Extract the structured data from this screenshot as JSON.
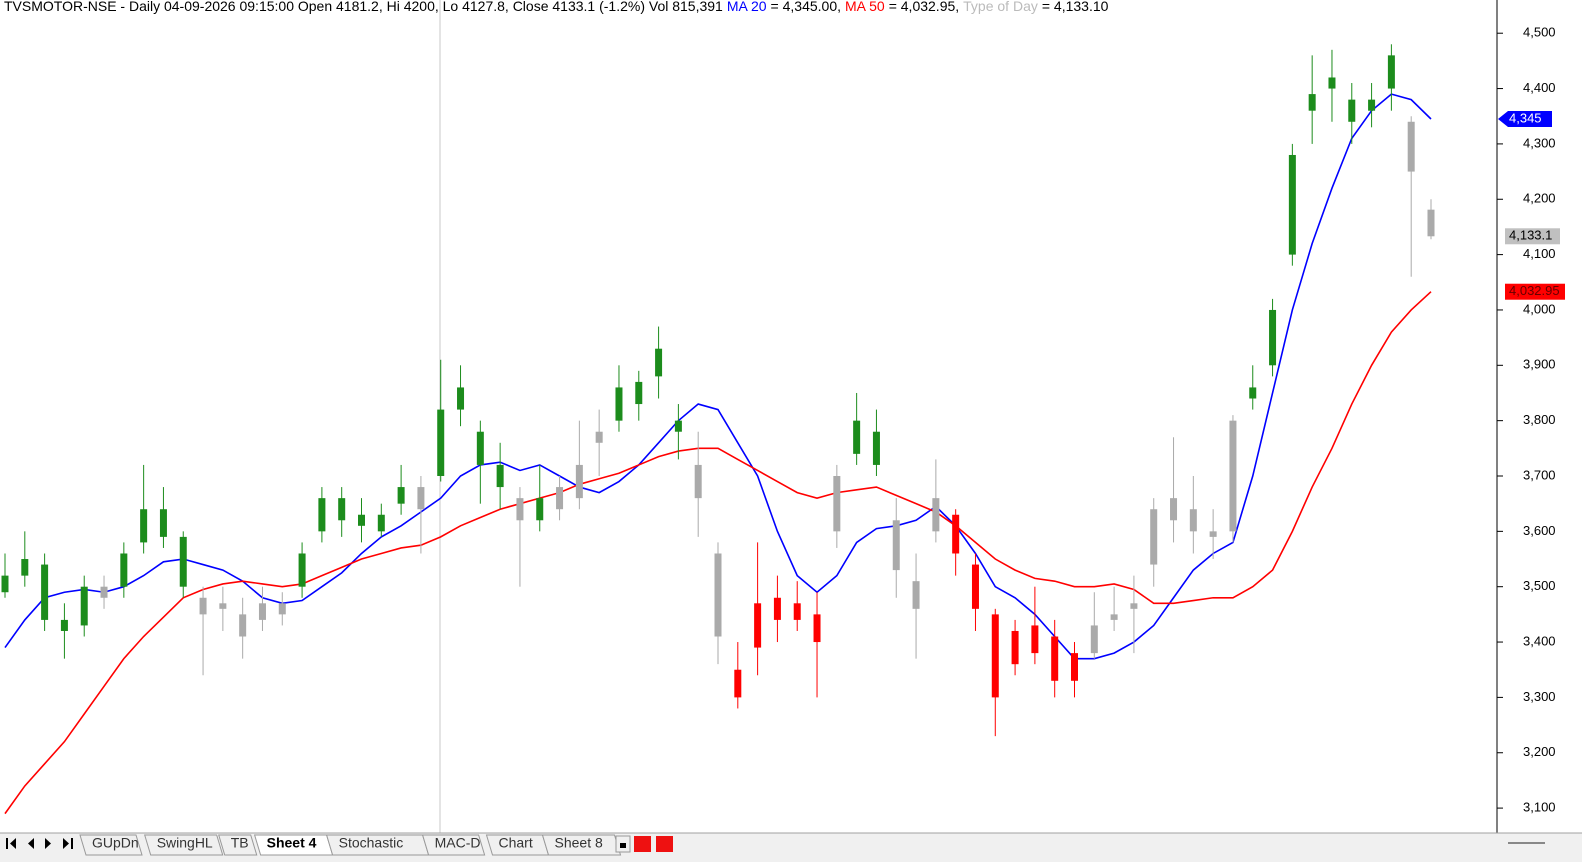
{
  "chart_data": {
    "type": "candlestick",
    "title": "TVSMOTOR-NSE - Daily 04-09-2026 09:15:00 Open 4181.2, Hi 4200, Lo 4127.8, Close 4133.1 (-1.2%) Vol 815,391",
    "ylim": [
      3055,
      4560
    ],
    "yticks": [
      {
        "value": 3100,
        "label": "3,100"
      },
      {
        "value": 3200,
        "label": "3,200"
      },
      {
        "value": 3300,
        "label": "3,300"
      },
      {
        "value": 3400,
        "label": "3,400"
      },
      {
        "value": 3500,
        "label": "3,500"
      },
      {
        "value": 3600,
        "label": "3,600"
      },
      {
        "value": 3700,
        "label": "3,700"
      },
      {
        "value": 3800,
        "label": "3,800"
      },
      {
        "value": 3900,
        "label": "3,900"
      },
      {
        "value": 4000,
        "label": "4,000"
      },
      {
        "value": 4100,
        "label": "4,100"
      },
      {
        "value": 4200,
        "label": "4,200"
      },
      {
        "value": 4300,
        "label": "4,300"
      },
      {
        "value": 4400,
        "label": "4,400"
      },
      {
        "value": 4500,
        "label": "4,500"
      }
    ],
    "series": [
      {
        "name": "MA 20",
        "color": "#0000ff",
        "header_value": "= 4,345.00,",
        "badge": "4,345",
        "values": [
          3390,
          3440,
          3480,
          3490,
          3495,
          3490,
          3500,
          3520,
          3545,
          3550,
          3540,
          3530,
          3510,
          3480,
          3470,
          3475,
          3500,
          3525,
          3560,
          3590,
          3610,
          3635,
          3660,
          3700,
          3720,
          3725,
          3710,
          3720,
          3700,
          3680,
          3670,
          3690,
          3720,
          3760,
          3800,
          3830,
          3820,
          3760,
          3700,
          3600,
          3520,
          3490,
          3520,
          3580,
          3605,
          3610,
          3620,
          3645,
          3610,
          3560,
          3500,
          3480,
          3450,
          3410,
          3370,
          3370,
          3380,
          3400,
          3430,
          3480,
          3530,
          3560,
          3580,
          3700,
          3850,
          4000,
          4120,
          4220,
          4310,
          4360,
          4390,
          4380,
          4345
        ]
      },
      {
        "name": "MA 50",
        "color": "#ff0000",
        "header_value": "= 4,032.95,",
        "badge": "4,032.95",
        "values": [
          3090,
          3140,
          3180,
          3220,
          3270,
          3320,
          3370,
          3410,
          3445,
          3480,
          3495,
          3505,
          3510,
          3505,
          3500,
          3505,
          3520,
          3535,
          3550,
          3560,
          3570,
          3575,
          3590,
          3610,
          3625,
          3640,
          3650,
          3660,
          3670,
          3685,
          3695,
          3705,
          3720,
          3735,
          3745,
          3750,
          3750,
          3730,
          3710,
          3690,
          3670,
          3660,
          3670,
          3675,
          3680,
          3665,
          3650,
          3635,
          3610,
          3580,
          3550,
          3530,
          3515,
          3510,
          3500,
          3500,
          3505,
          3495,
          3470,
          3470,
          3475,
          3480,
          3480,
          3500,
          3530,
          3600,
          3680,
          3750,
          3830,
          3900,
          3960,
          4000,
          4032.95
        ]
      },
      {
        "name": "Type of Day",
        "color": "#bbbbbb",
        "header_value": "= 4,133.10",
        "badge": "4,133.1",
        "colors": [
          "#1c8c1c",
          "#1c8c1c",
          "#1c8c1c",
          "#1c8c1c",
          "#1c8c1c",
          "#aaaaaa",
          "#1c8c1c",
          "#1c8c1c",
          "#1c8c1c",
          "#1c8c1c",
          "#aaaaaa",
          "#aaaaaa",
          "#aaaaaa",
          "#aaaaaa",
          "#aaaaaa",
          "#1c8c1c",
          "#1c8c1c",
          "#1c8c1c",
          "#1c8c1c",
          "#1c8c1c",
          "#1c8c1c",
          "#aaaaaa",
          "#1c8c1c",
          "#1c8c1c",
          "#1c8c1c",
          "#1c8c1c",
          "#aaaaaa",
          "#1c8c1c",
          "#aaaaaa",
          "#aaaaaa",
          "#aaaaaa",
          "#1c8c1c",
          "#1c8c1c",
          "#1c8c1c",
          "#1c8c1c",
          "#aaaaaa",
          "#aaaaaa",
          "#ff0000",
          "#ff0000",
          "#ff0000",
          "#ff0000",
          "#ff0000",
          "#aaaaaa",
          "#1c8c1c",
          "#1c8c1c",
          "#aaaaaa",
          "#aaaaaa",
          "#aaaaaa",
          "#ff0000",
          "#ff0000",
          "#ff0000",
          "#ff0000",
          "#ff0000",
          "#ff0000",
          "#ff0000",
          "#aaaaaa",
          "#aaaaaa",
          "#aaaaaa",
          "#aaaaaa",
          "#aaaaaa",
          "#aaaaaa",
          "#aaaaaa",
          "#aaaaaa",
          "#1c8c1c",
          "#1c8c1c",
          "#1c8c1c",
          "#1c8c1c",
          "#1c8c1c",
          "#1c8c1c",
          "#1c8c1c",
          "#1c8c1c",
          "#aaaaaa",
          "#aaaaaa"
        ],
        "ohlc": [
          [
            3490,
            3560,
            3480,
            3520
          ],
          [
            3520,
            3600,
            3500,
            3550
          ],
          [
            3540,
            3560,
            3420,
            3440
          ],
          [
            3440,
            3470,
            3370,
            3420
          ],
          [
            3430,
            3520,
            3410,
            3500
          ],
          [
            3500,
            3520,
            3460,
            3480
          ],
          [
            3500,
            3580,
            3480,
            3560
          ],
          [
            3580,
            3720,
            3560,
            3640
          ],
          [
            3640,
            3680,
            3570,
            3590
          ],
          [
            3590,
            3600,
            3480,
            3500
          ],
          [
            3480,
            3500,
            3340,
            3450
          ],
          [
            3470,
            3500,
            3420,
            3460
          ],
          [
            3450,
            3480,
            3370,
            3410
          ],
          [
            3440,
            3500,
            3420,
            3470
          ],
          [
            3470,
            3490,
            3430,
            3450
          ],
          [
            3500,
            3580,
            3480,
            3560
          ],
          [
            3600,
            3680,
            3580,
            3660
          ],
          [
            3660,
            3680,
            3590,
            3620
          ],
          [
            3630,
            3660,
            3580,
            3610
          ],
          [
            3600,
            3650,
            3590,
            3630
          ],
          [
            3650,
            3720,
            3630,
            3680
          ],
          [
            3680,
            3700,
            3560,
            3640
          ],
          [
            3700,
            3910,
            3690,
            3820
          ],
          [
            3860,
            3900,
            3790,
            3820
          ],
          [
            3780,
            3800,
            3650,
            3720
          ],
          [
            3720,
            3760,
            3640,
            3680
          ],
          [
            3660,
            3680,
            3500,
            3620
          ],
          [
            3620,
            3720,
            3600,
            3660
          ],
          [
            3680,
            3700,
            3620,
            3640
          ],
          [
            3660,
            3800,
            3640,
            3720
          ],
          [
            3760,
            3820,
            3700,
            3780
          ],
          [
            3800,
            3900,
            3780,
            3860
          ],
          [
            3870,
            3890,
            3800,
            3830
          ],
          [
            3880,
            3970,
            3840,
            3930
          ],
          [
            3800,
            3830,
            3730,
            3780
          ],
          [
            3720,
            3780,
            3590,
            3660
          ],
          [
            3560,
            3580,
            3360,
            3410
          ],
          [
            3350,
            3400,
            3280,
            3300
          ],
          [
            3390,
            3580,
            3340,
            3470
          ],
          [
            3480,
            3520,
            3400,
            3440
          ],
          [
            3470,
            3510,
            3420,
            3440
          ],
          [
            3450,
            3490,
            3300,
            3400
          ],
          [
            3600,
            3720,
            3570,
            3700
          ],
          [
            3740,
            3850,
            3720,
            3800
          ],
          [
            3780,
            3820,
            3700,
            3720
          ],
          [
            3620,
            3660,
            3480,
            3530
          ],
          [
            3510,
            3560,
            3370,
            3460
          ],
          [
            3600,
            3730,
            3580,
            3660
          ],
          [
            3630,
            3640,
            3520,
            3560
          ],
          [
            3540,
            3560,
            3420,
            3460
          ],
          [
            3450,
            3460,
            3230,
            3300
          ],
          [
            3360,
            3440,
            3340,
            3420
          ],
          [
            3430,
            3500,
            3360,
            3380
          ],
          [
            3410,
            3440,
            3300,
            3330
          ],
          [
            3380,
            3400,
            3300,
            3330
          ],
          [
            3380,
            3490,
            3370,
            3430
          ],
          [
            3440,
            3500,
            3420,
            3450
          ],
          [
            3460,
            3520,
            3380,
            3470
          ],
          [
            3540,
            3660,
            3500,
            3640
          ],
          [
            3660,
            3770,
            3580,
            3620
          ],
          [
            3640,
            3700,
            3560,
            3600
          ],
          [
            3590,
            3640,
            3550,
            3600
          ],
          [
            3600,
            3810,
            3580,
            3800
          ],
          [
            3840,
            3900,
            3820,
            3860
          ],
          [
            3900,
            4020,
            3880,
            4000
          ],
          [
            4100,
            4300,
            4080,
            4280
          ],
          [
            4360,
            4460,
            4300,
            4390
          ],
          [
            4400,
            4470,
            4340,
            4420
          ],
          [
            4380,
            4410,
            4300,
            4340
          ],
          [
            4360,
            4410,
            4330,
            4380
          ],
          [
            4400,
            4480,
            4360,
            4460
          ],
          [
            4340,
            4350,
            4060,
            4250
          ],
          [
            4181.2,
            4200,
            4127.8,
            4133.1
          ]
        ]
      }
    ]
  },
  "tabs": [
    "GUpDn",
    "SwingHL",
    "TB",
    "Sheet 4",
    "Stochastic",
    "MAC-D",
    "Chart",
    "Sheet 8"
  ],
  "active_tab": "Sheet 4"
}
